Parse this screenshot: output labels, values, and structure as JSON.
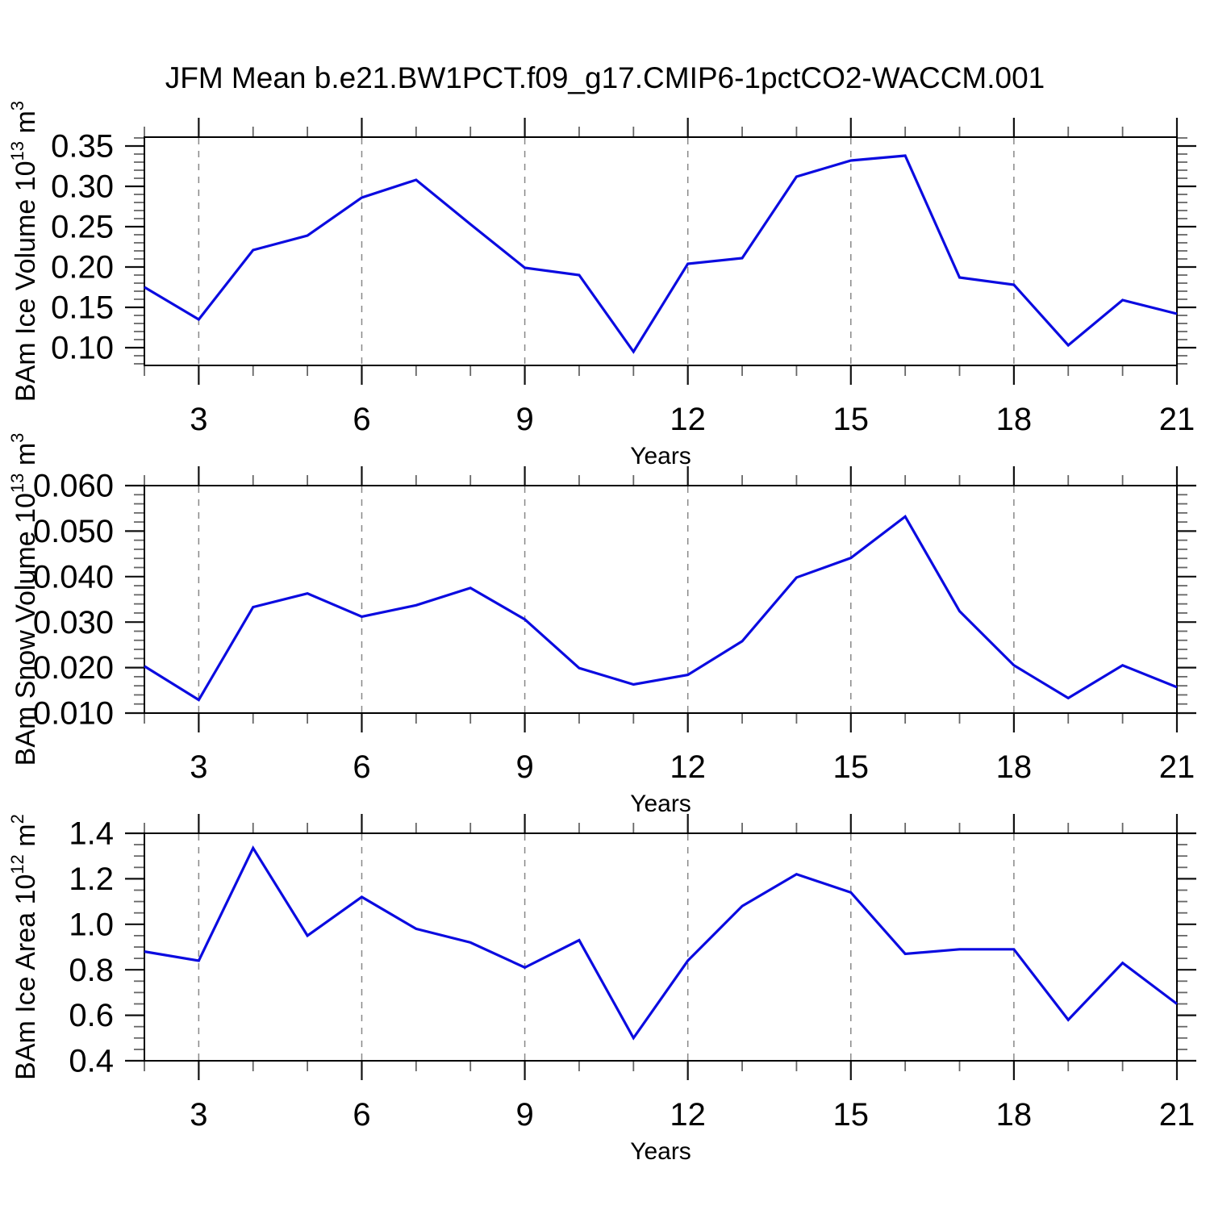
{
  "title": "JFM Mean b.e21.BW1PCT.f09_g17.CMIP6-1pctCO2-WACCM.001",
  "colors": {
    "line": "#0b0be0",
    "grid": "#888888",
    "axis": "#000000",
    "major_tick": "#111111",
    "minor_tick": "#666666"
  },
  "chart_data": [
    {
      "type": "line",
      "name": "ice-volume",
      "xlabel": "Years",
      "ylabel_parts": [
        {
          "text": "BAm Ice Volume 10",
          "sup": false
        },
        {
          "text": "13",
          "sup": true
        },
        {
          "text": " m",
          "sup": false
        },
        {
          "text": "3",
          "sup": true
        }
      ],
      "x": [
        2,
        3,
        4,
        5,
        6,
        7,
        8,
        9,
        10,
        11,
        12,
        13,
        14,
        15,
        16,
        17,
        18,
        19,
        20,
        21
      ],
      "values": [
        0.175,
        0.135,
        0.221,
        0.239,
        0.286,
        0.308,
        0.253,
        0.199,
        0.19,
        0.095,
        0.204,
        0.211,
        0.312,
        0.332,
        0.338,
        0.187,
        0.178,
        0.103,
        0.159,
        0.142
      ],
      "xlim": [
        2,
        21
      ],
      "ylim": [
        0.078,
        0.361
      ],
      "xticks": [
        3,
        6,
        9,
        12,
        15,
        18,
        21
      ],
      "xtick_labels": [
        "3",
        "6",
        "9",
        "12",
        "15",
        "18",
        "21"
      ],
      "xminor_step": 1,
      "grid_x": [
        3,
        6,
        9,
        12,
        15,
        18
      ],
      "yticks": [
        0.35,
        0.3,
        0.25,
        0.2,
        0.15,
        0.1
      ],
      "ytick_labels": [
        "0.35",
        "0.30",
        "0.25",
        "0.20",
        "0.15",
        "0.10"
      ],
      "yminor_step": 0.01,
      "grid_on": false
    },
    {
      "type": "line",
      "name": "snow-volume",
      "xlabel": "Years",
      "ylabel_parts": [
        {
          "text": "BAm Snow Volume 10",
          "sup": false
        },
        {
          "text": "13",
          "sup": true
        },
        {
          "text": " m",
          "sup": false
        },
        {
          "text": "3",
          "sup": true
        }
      ],
      "x": [
        2,
        3,
        4,
        5,
        6,
        7,
        8,
        9,
        10,
        11,
        12,
        13,
        14,
        15,
        16,
        17,
        18,
        19,
        20,
        21
      ],
      "values": [
        0.0203,
        0.0129,
        0.0333,
        0.0363,
        0.0312,
        0.0337,
        0.0375,
        0.0306,
        0.0199,
        0.0163,
        0.0184,
        0.0258,
        0.0398,
        0.0441,
        0.0532,
        0.0324,
        0.0205,
        0.0133,
        0.0205,
        0.0157
      ],
      "xlim": [
        2,
        21
      ],
      "ylim": [
        0.01,
        0.06
      ],
      "xticks": [
        3,
        6,
        9,
        12,
        15,
        18,
        21
      ],
      "xtick_labels": [
        "3",
        "6",
        "9",
        "12",
        "15",
        "18",
        "21"
      ],
      "xminor_step": 1,
      "grid_x": [
        3,
        6,
        9,
        12,
        15,
        18
      ],
      "yticks": [
        0.06,
        0.05,
        0.04,
        0.03,
        0.02,
        0.01
      ],
      "ytick_labels": [
        "0.060",
        "0.050",
        "0.040",
        "0.030",
        "0.020",
        "0.010"
      ],
      "yminor_step": 0.002,
      "grid_on": false
    },
    {
      "type": "line",
      "name": "ice-area",
      "xlabel": "Years",
      "ylabel_parts": [
        {
          "text": "BAm Ice Area 10",
          "sup": false
        },
        {
          "text": "12",
          "sup": true
        },
        {
          "text": " m",
          "sup": false
        },
        {
          "text": "2",
          "sup": true
        }
      ],
      "x": [
        2,
        3,
        4,
        5,
        6,
        7,
        8,
        9,
        10,
        11,
        12,
        13,
        14,
        15,
        16,
        17,
        18,
        19,
        20,
        21
      ],
      "values": [
        0.88,
        0.84,
        1.335,
        0.95,
        1.12,
        0.98,
        0.92,
        0.81,
        0.93,
        0.5,
        0.84,
        1.08,
        1.22,
        1.14,
        0.87,
        0.89,
        0.89,
        0.58,
        0.83,
        0.65
      ],
      "xlim": [
        2,
        21
      ],
      "ylim": [
        0.4,
        1.4
      ],
      "xticks": [
        3,
        6,
        9,
        12,
        15,
        18,
        21
      ],
      "xtick_labels": [
        "3",
        "6",
        "9",
        "12",
        "15",
        "18",
        "21"
      ],
      "xminor_step": 1,
      "grid_x": [
        3,
        6,
        9,
        12,
        15,
        18
      ],
      "yticks": [
        1.4,
        1.2,
        1.0,
        0.8,
        0.6,
        0.4
      ],
      "ytick_labels": [
        "1.4",
        "1.2",
        "1.0",
        "0.8",
        "0.6",
        "0.4"
      ],
      "yminor_step": 0.05,
      "grid_on": false
    }
  ]
}
